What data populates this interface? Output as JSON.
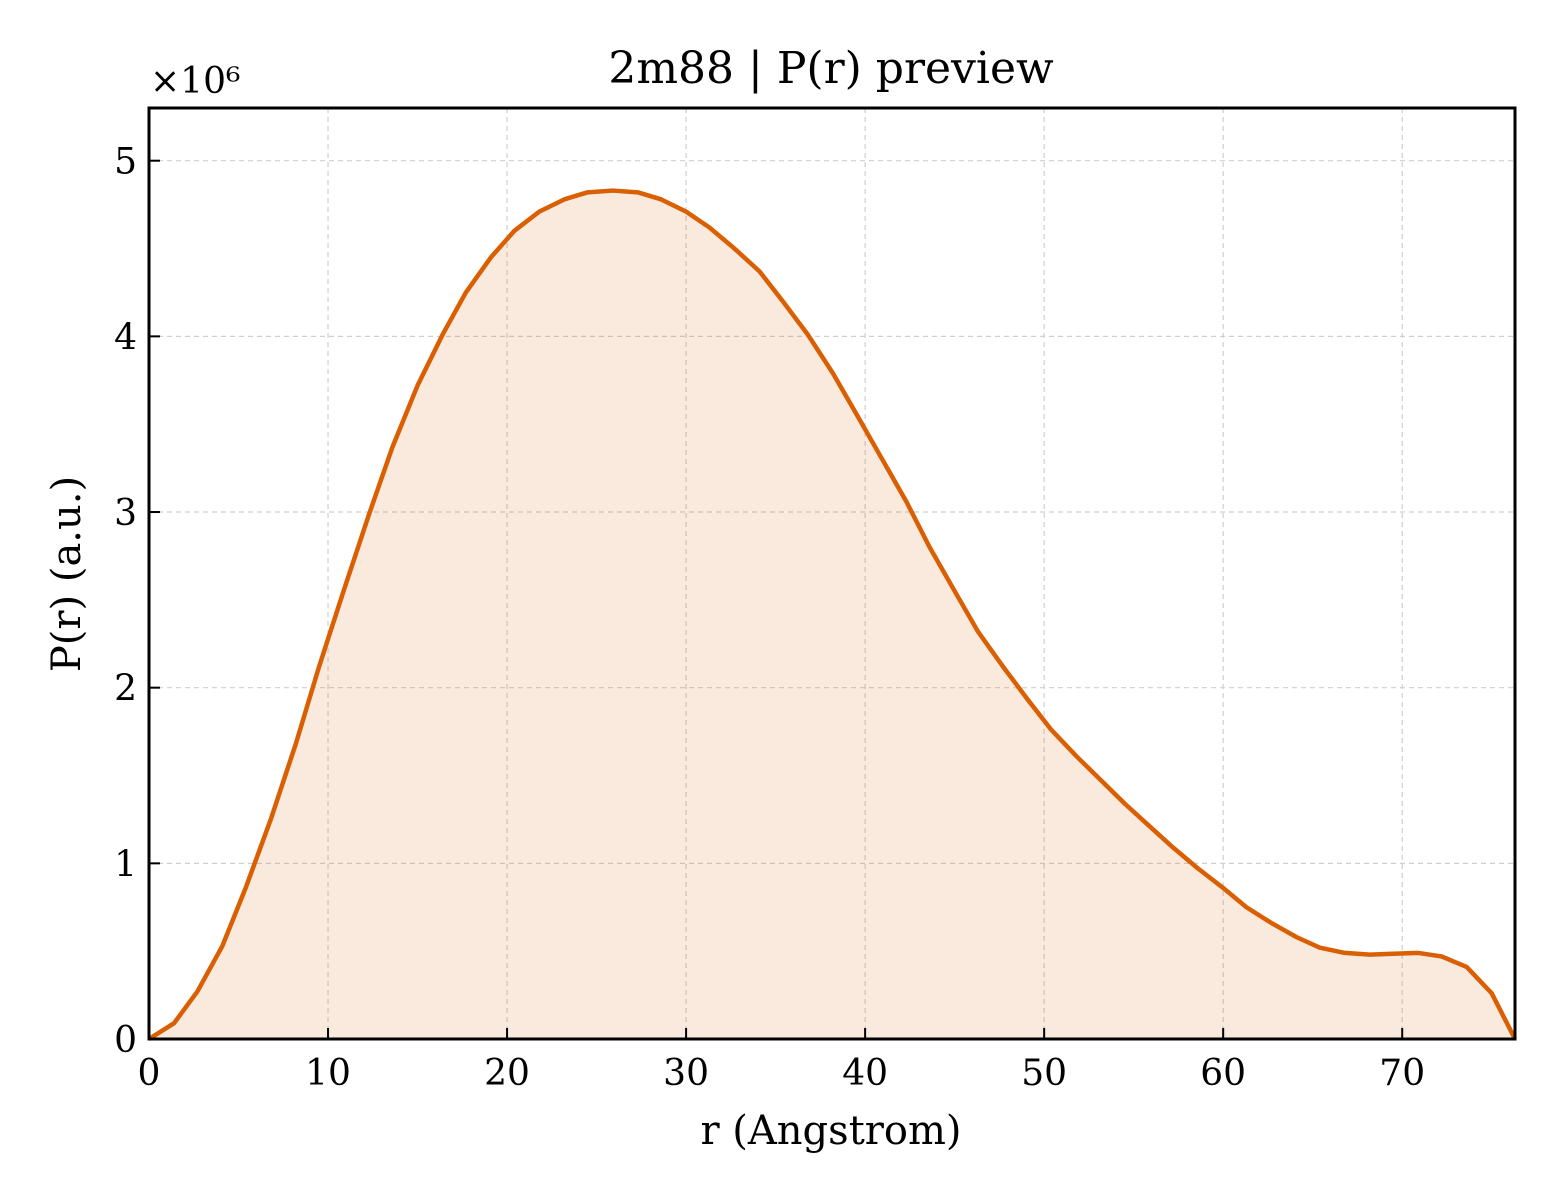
{
  "chart_data": {
    "type": "area",
    "title": "2m88 | P(r) preview",
    "xlabel": "r (Angstrom)",
    "ylabel": "P(r) (a.u.)",
    "y_exponent_label": "×10⁶",
    "xlim": [
      0,
      76.3
    ],
    "ylim": [
      0,
      5.3
    ],
    "y_scale_factor": 1000000,
    "xticks": [
      0,
      10,
      20,
      30,
      40,
      50,
      60,
      70
    ],
    "yticks": [
      0,
      1,
      2,
      3,
      4,
      5
    ],
    "grid": true,
    "colors": {
      "line": "#d95f02",
      "fill": "#d95f02"
    },
    "series": [
      {
        "x": [
          0,
          1.4,
          2.7,
          4.1,
          5.4,
          6.8,
          8.2,
          9.5,
          10.9,
          12.3,
          13.6,
          15.0,
          16.4,
          17.7,
          19.1,
          20.4,
          21.8,
          23.2,
          24.5,
          25.9,
          27.3,
          28.6,
          30.0,
          31.3,
          32.7,
          34.1,
          35.4,
          36.8,
          38.2,
          39.5,
          40.9,
          42.3,
          43.6,
          45.0,
          46.3,
          47.7,
          49.1,
          50.4,
          51.8,
          53.2,
          54.5,
          55.9,
          57.2,
          58.6,
          60.0,
          61.3,
          62.7,
          64.1,
          65.4,
          66.8,
          68.2,
          69.5,
          70.9,
          72.2,
          73.6,
          75.0,
          76.3
        ],
        "y": [
          0.0,
          0.09,
          0.27,
          0.53,
          0.86,
          1.25,
          1.68,
          2.12,
          2.56,
          2.99,
          3.37,
          3.72,
          4.01,
          4.25,
          4.45,
          4.6,
          4.71,
          4.78,
          4.82,
          4.83,
          4.82,
          4.78,
          4.71,
          4.62,
          4.5,
          4.37,
          4.2,
          4.01,
          3.79,
          3.56,
          3.31,
          3.06,
          2.8,
          2.55,
          2.32,
          2.12,
          1.93,
          1.76,
          1.61,
          1.47,
          1.34,
          1.21,
          1.09,
          0.97,
          0.86,
          0.75,
          0.66,
          0.58,
          0.52,
          0.49,
          0.48,
          0.485,
          0.49,
          0.47,
          0.41,
          0.26,
          0.0
        ]
      }
    ]
  }
}
